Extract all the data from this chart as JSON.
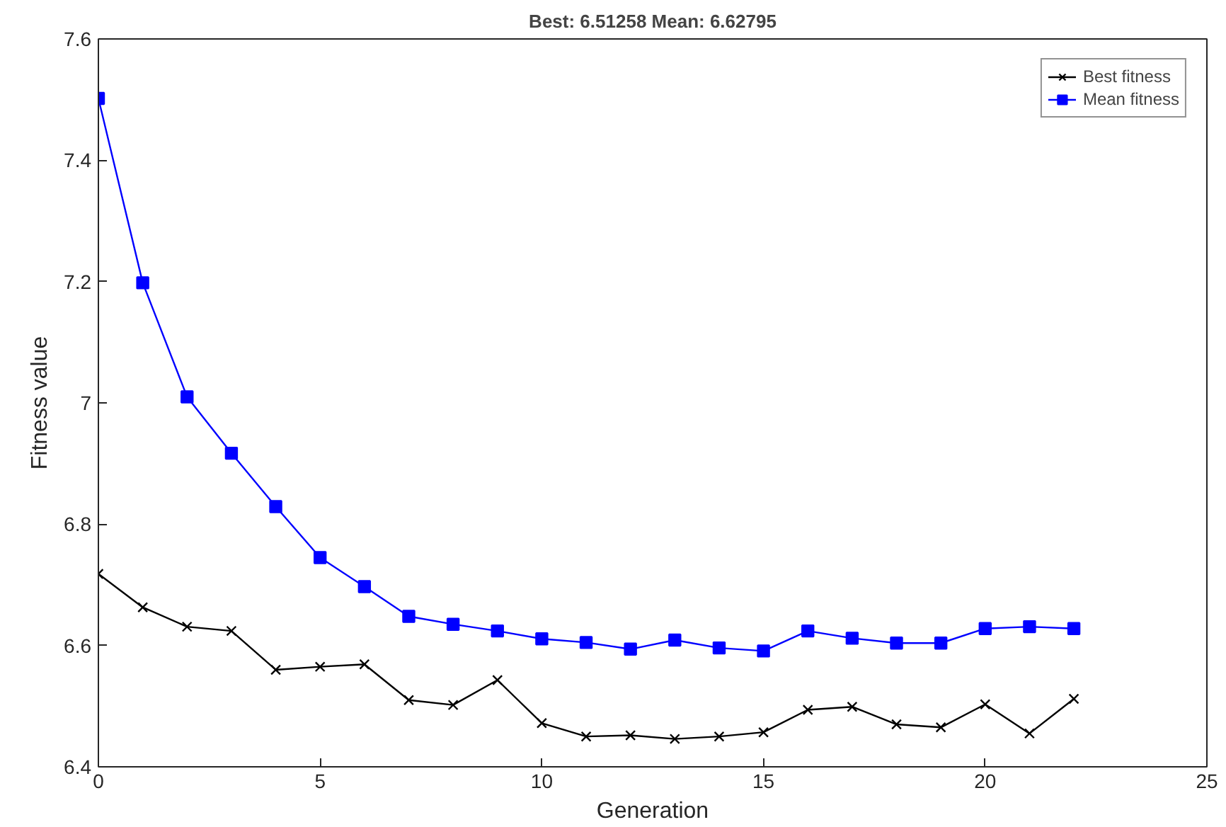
{
  "chart_data": {
    "type": "line",
    "title": "Best: 6.51258 Mean: 6.62795",
    "xlabel": "Generation",
    "ylabel": "Fitness value",
    "x": [
      0,
      1,
      2,
      3,
      4,
      5,
      6,
      7,
      8,
      9,
      10,
      11,
      12,
      13,
      14,
      15,
      16,
      17,
      18,
      19,
      20,
      21,
      22
    ],
    "series": [
      {
        "name": "Best fitness",
        "color": "#000000",
        "marker": "cross",
        "values": [
          6.718,
          6.663,
          6.631,
          6.624,
          6.56,
          6.565,
          6.569,
          6.51,
          6.502,
          6.543,
          6.472,
          6.45,
          6.452,
          6.446,
          6.45,
          6.457,
          6.494,
          6.499,
          6.47,
          6.465,
          6.503,
          6.455,
          6.512
        ]
      },
      {
        "name": "Mean fitness",
        "color": "#0000ff",
        "marker": "square",
        "values": [
          7.502,
          7.198,
          7.01,
          6.917,
          6.829,
          6.745,
          6.697,
          6.648,
          6.635,
          6.624,
          6.611,
          6.605,
          6.594,
          6.609,
          6.596,
          6.591,
          6.624,
          6.612,
          6.604,
          6.604,
          6.628,
          6.631,
          6.628
        ]
      }
    ],
    "xlim": [
      0,
      25
    ],
    "xticks": [
      0,
      5,
      10,
      15,
      20,
      25
    ],
    "ylim": [
      6.4,
      7.6
    ],
    "yticks": [
      6.4,
      6.6,
      6.8,
      7,
      7.2,
      7.4,
      7.6
    ],
    "grid": false,
    "legend": "top right",
    "line_style": "solid"
  }
}
